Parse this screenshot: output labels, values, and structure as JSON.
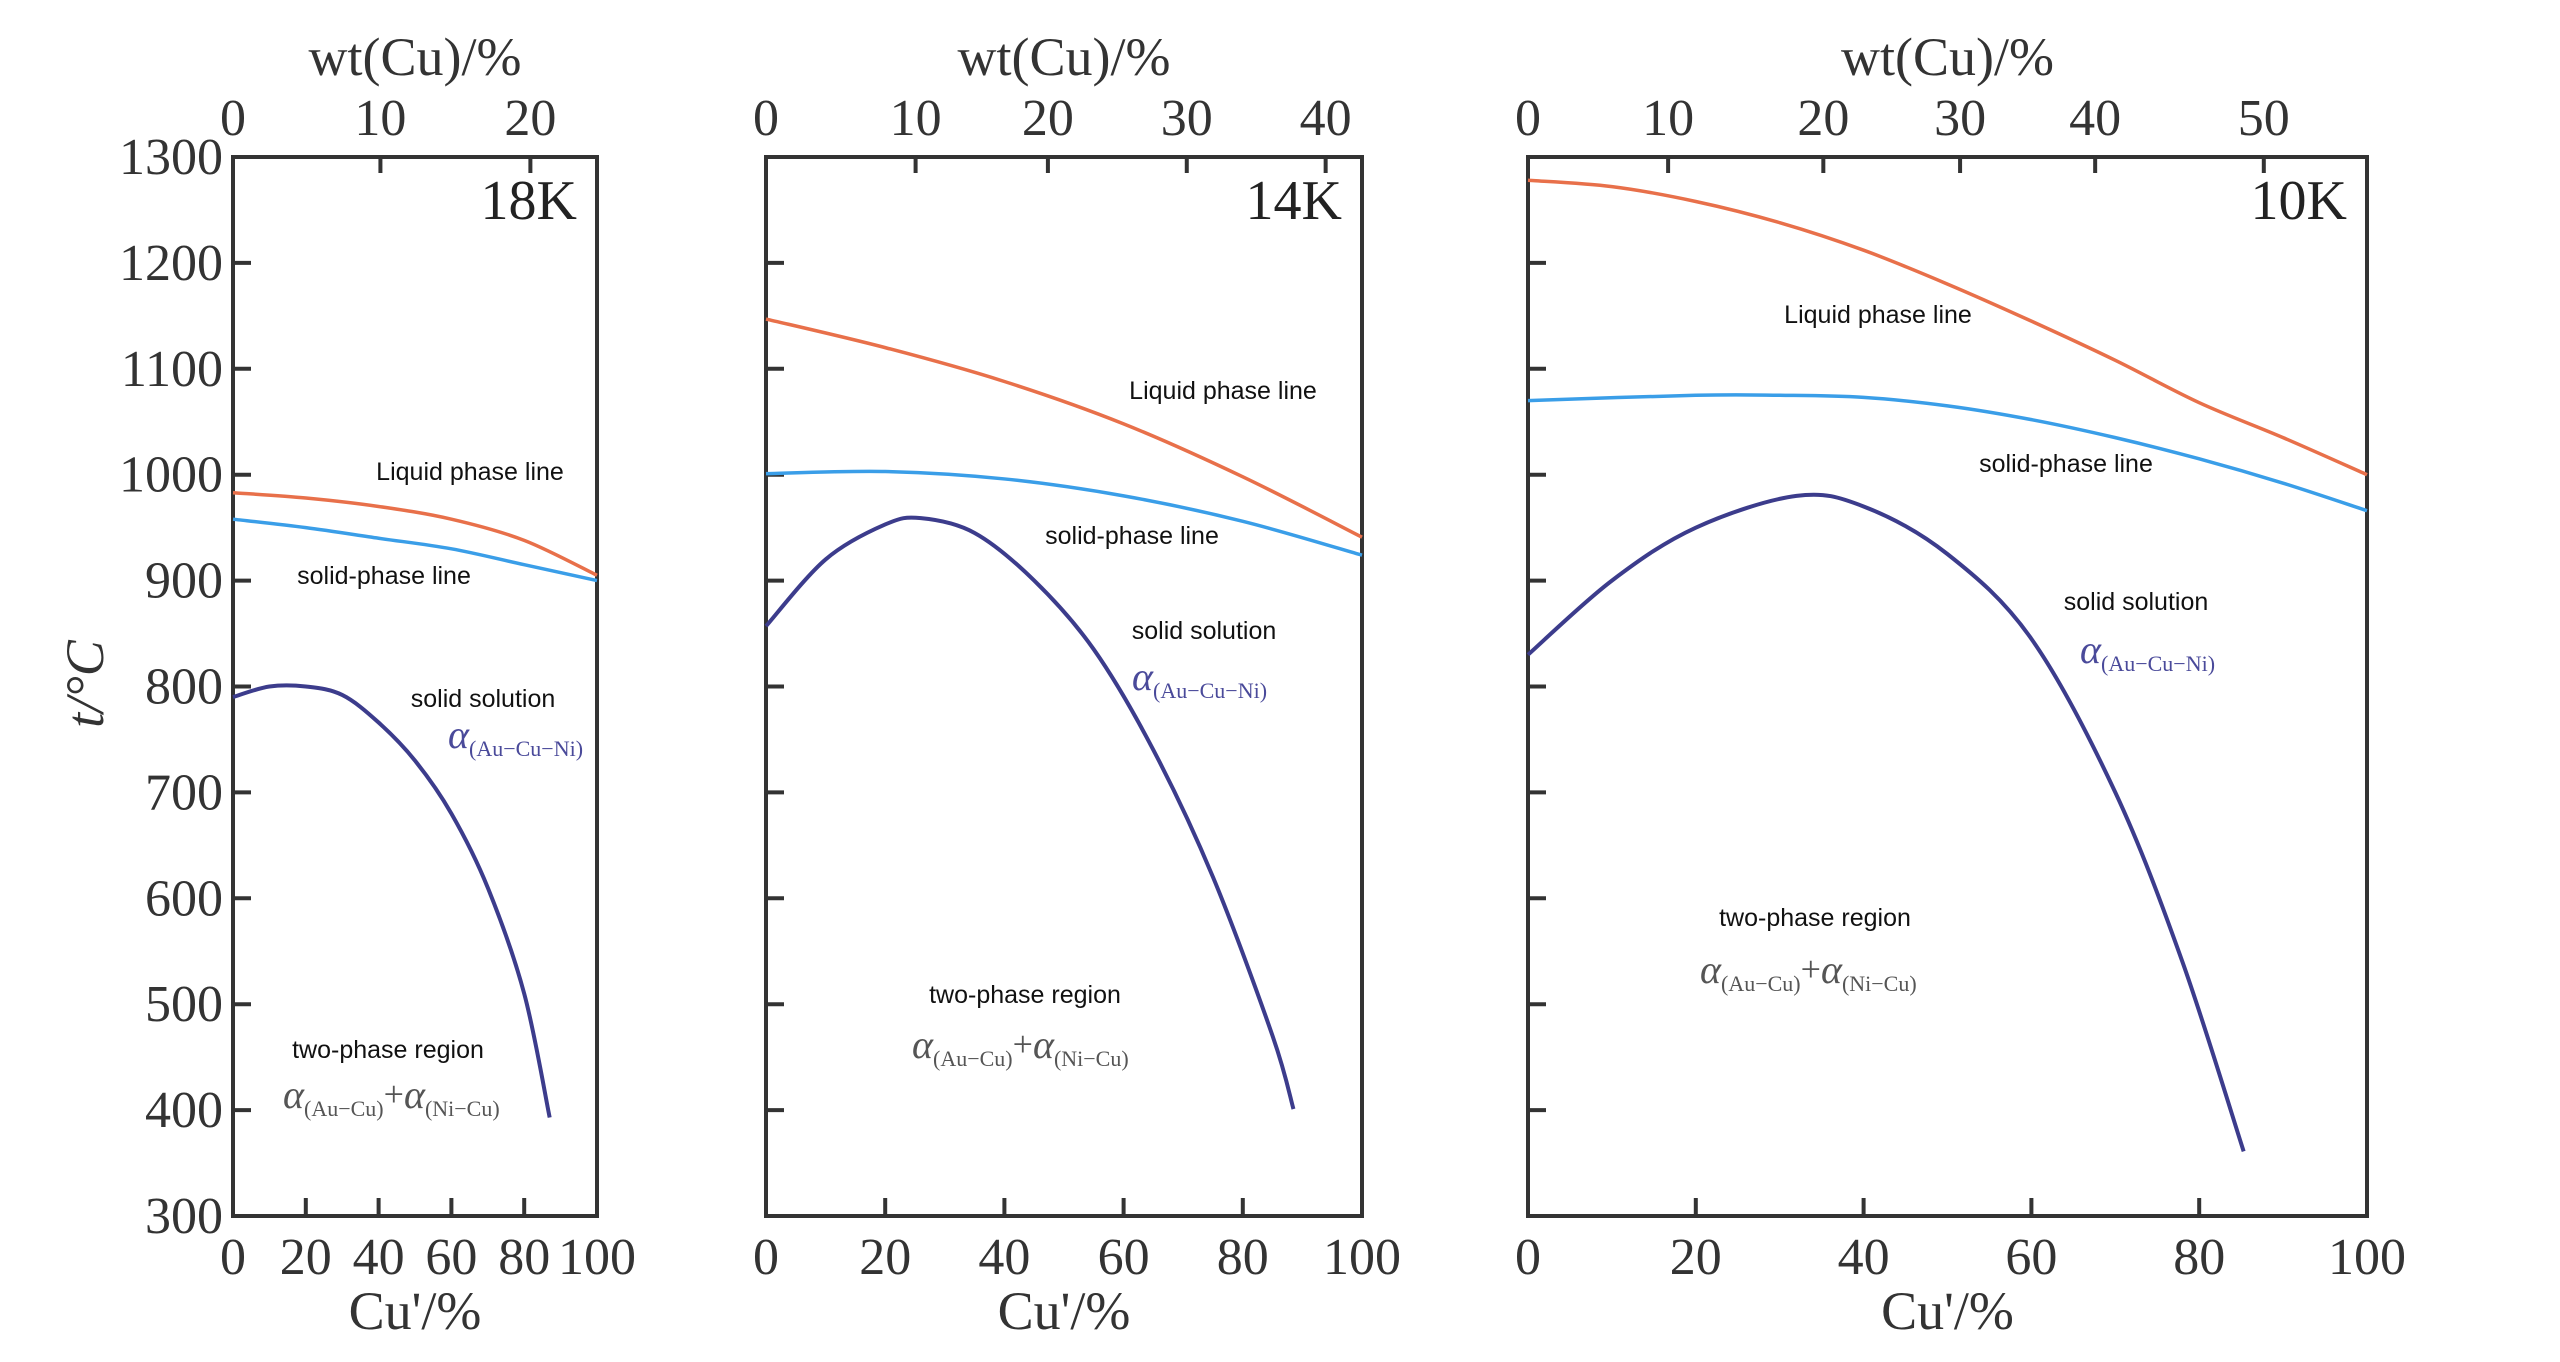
{
  "chart_data": [
    {
      "type": "line",
      "panel_label": "18K",
      "xlabel": "Cu'/%",
      "ylabel": "t/°C",
      "top_xlabel": "wt(Cu)/%",
      "xlim": [
        0,
        100
      ],
      "ylim": [
        300,
        1300
      ],
      "x_ticks": [
        "0",
        "20",
        "40",
        "60",
        "80",
        "100"
      ],
      "y_ticks": [
        "1300",
        "1200",
        "1100",
        "1000",
        "900",
        "800",
        "700",
        "600",
        "500",
        "400",
        "300"
      ],
      "top_ticks": [
        {
          "label": "0",
          "at_cu": 0
        },
        {
          "label": "10",
          "at_cu": 40.5
        },
        {
          "label": "20",
          "at_cu": 81.7
        }
      ],
      "series": [
        {
          "key": "liquidus",
          "label": "Liquid phase line",
          "color": "#e8704a",
          "x": [
            0,
            20,
            40,
            60,
            80,
            100
          ],
          "y": [
            983,
            978,
            970,
            958,
            938,
            905
          ]
        },
        {
          "key": "solidus",
          "label": "solid-phase line",
          "color": "#3a9ee8",
          "x": [
            0,
            20,
            40,
            60,
            80,
            100
          ],
          "y": [
            958,
            950,
            940,
            930,
            915,
            900
          ]
        },
        {
          "key": "solvus",
          "color": "#3c3c8c",
          "x": [
            0,
            10,
            20,
            30,
            40,
            50,
            60,
            70,
            80,
            87
          ],
          "y": [
            790,
            800,
            800,
            792,
            766,
            730,
            680,
            610,
            510,
            393
          ]
        }
      ],
      "annotations": {
        "solid_solution": "solid solution",
        "alpha_sss": "α",
        "alpha_sss_sub": "(Au−Cu−Ni)",
        "two_phase": "two-phase region",
        "alpha_1": "α",
        "alpha_1_sub": "(Au−Cu)",
        "plus": "+",
        "alpha_2": "α",
        "alpha_2_sub": "(Ni−Cu)"
      }
    },
    {
      "type": "line",
      "panel_label": "14K",
      "xlabel": "Cu'/%",
      "top_xlabel": "wt(Cu)/%",
      "xlim": [
        0,
        100
      ],
      "ylim": [
        300,
        1300
      ],
      "x_ticks": [
        "0",
        "20",
        "40",
        "60",
        "80",
        "100"
      ],
      "top_ticks": [
        {
          "label": "0",
          "at_cu": 0
        },
        {
          "label": "10",
          "at_cu": 25.1
        },
        {
          "label": "20",
          "at_cu": 47.3
        },
        {
          "label": "30",
          "at_cu": 70.6
        },
        {
          "label": "40",
          "at_cu": 93.9
        }
      ],
      "series": [
        {
          "key": "liquidus",
          "label": "Liquid phase line",
          "color": "#e8704a",
          "x": [
            0,
            20,
            40,
            60,
            80,
            100
          ],
          "y": [
            1147,
            1120,
            1088,
            1048,
            998,
            941
          ]
        },
        {
          "key": "solidus",
          "label": "solid-phase line",
          "color": "#3a9ee8",
          "x": [
            0,
            20,
            40,
            60,
            80,
            100
          ],
          "y": [
            1001,
            1003,
            996,
            980,
            956,
            924
          ]
        },
        {
          "key": "solvus",
          "color": "#3c3c8c",
          "x": [
            0,
            10,
            20,
            26,
            35,
            45,
            55,
            65,
            75,
            85,
            88.5
          ],
          "y": [
            857,
            920,
            953,
            959,
            945,
            900,
            835,
            740,
            620,
            470,
            401
          ]
        }
      ],
      "annotations": {
        "solid_solution": "solid solution",
        "alpha_sss": "α",
        "alpha_sss_sub": "(Au−Cu−Ni)",
        "two_phase": "two-phase region",
        "alpha_1": "α",
        "alpha_1_sub": "(Au−Cu)",
        "plus": "+",
        "alpha_2": "α",
        "alpha_2_sub": "(Ni−Cu)"
      }
    },
    {
      "type": "line",
      "panel_label": "10K",
      "xlabel": "Cu'/%",
      "top_xlabel": "wt(Cu)/%",
      "xlim": [
        0,
        100
      ],
      "ylim": [
        300,
        1300
      ],
      "x_ticks": [
        "0",
        "20",
        "40",
        "60",
        "80",
        "100"
      ],
      "top_ticks": [
        {
          "label": "0",
          "at_cu": 0
        },
        {
          "label": "10",
          "at_cu": 16.7
        },
        {
          "label": "20",
          "at_cu": 35.2
        },
        {
          "label": "30",
          "at_cu": 51.5
        },
        {
          "label": "40",
          "at_cu": 67.6
        },
        {
          "label": "50",
          "at_cu": 87.7
        }
      ],
      "series": [
        {
          "key": "liquidus",
          "label": "Liquid phase line",
          "color": "#e8704a",
          "x": [
            0,
            10,
            20,
            30,
            40,
            50,
            60,
            70,
            80,
            90,
            100
          ],
          "y": [
            1278,
            1272,
            1258,
            1238,
            1212,
            1180,
            1145,
            1108,
            1068,
            1035,
            1000
          ]
        },
        {
          "key": "solidus",
          "label": "solid-phase line",
          "color": "#3a9ee8",
          "x": [
            0,
            20,
            30,
            40,
            50,
            60,
            70,
            80,
            90,
            100
          ],
          "y": [
            1070,
            1075,
            1075,
            1073,
            1065,
            1052,
            1035,
            1015,
            992,
            966
          ]
        },
        {
          "key": "solvus",
          "color": "#3c3c8c",
          "x": [
            0,
            10,
            20,
            32,
            40,
            50,
            60,
            70,
            78,
            85.3
          ],
          "y": [
            830,
            900,
            950,
            980,
            970,
            925,
            845,
            700,
            540,
            361
          ]
        }
      ],
      "annotations": {
        "solid_solution": "solid solution",
        "alpha_sss": "α",
        "alpha_sss_sub": "(Au−Cu−Ni)",
        "two_phase": "two-phase region",
        "alpha_1": "α",
        "alpha_1_sub": "(Au−Cu)",
        "plus": "+",
        "alpha_2": "α",
        "alpha_2_sub": "(Ni−Cu)"
      }
    }
  ]
}
